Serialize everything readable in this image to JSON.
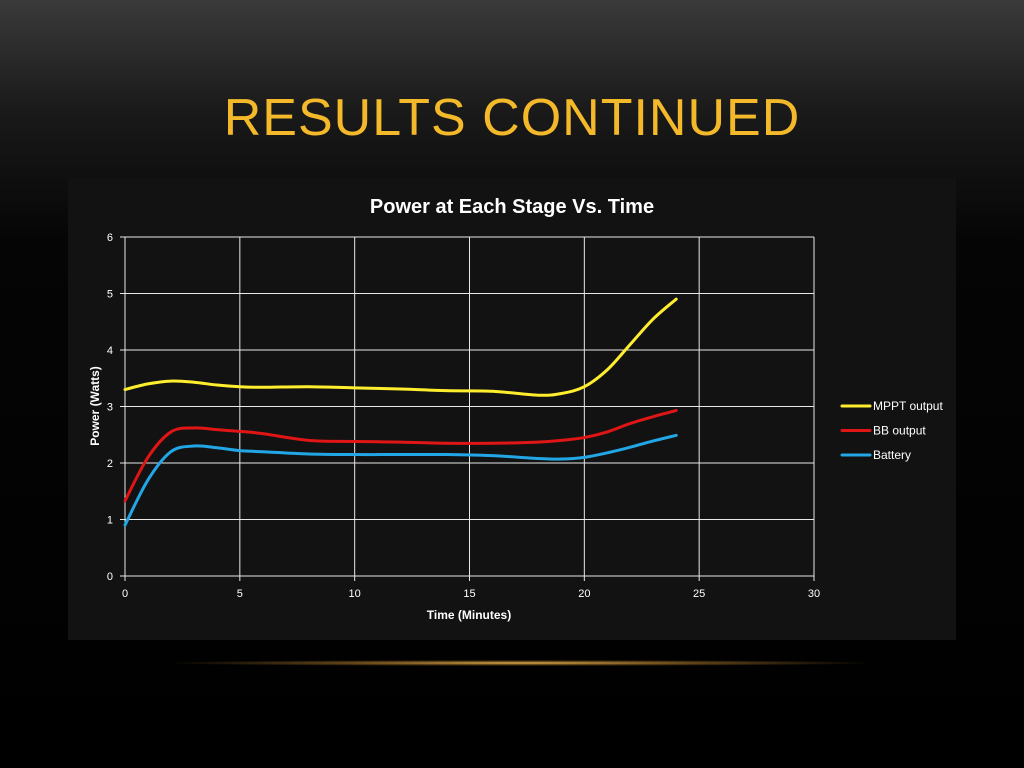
{
  "slide": {
    "title": "RESULTS CONTINUED"
  },
  "colors": {
    "title": "#F4B92A",
    "MPPT output": "#FFEE2E",
    "BB output": "#E01515",
    "Battery": "#23A6E6",
    "grid": "#E8E8E8"
  },
  "chart_data": {
    "type": "line",
    "title": "Power at Each Stage Vs. Time",
    "xlabel": "Time (Minutes)",
    "ylabel": "Power (Watts)",
    "xlim": [
      0,
      30
    ],
    "ylim": [
      0,
      6
    ],
    "xticks": [
      0,
      5,
      10,
      15,
      20,
      25,
      30
    ],
    "yticks": [
      0,
      1,
      2,
      3,
      4,
      5,
      6
    ],
    "grid": true,
    "legend_position": "right",
    "x": [
      0,
      1,
      2,
      3,
      4,
      5,
      6,
      8,
      10,
      12,
      14,
      16,
      18,
      19,
      20,
      21,
      22,
      23,
      24
    ],
    "series": [
      {
        "name": "MPPT output",
        "values": [
          3.3,
          3.4,
          3.45,
          3.43,
          3.38,
          3.35,
          3.34,
          3.35,
          3.33,
          3.31,
          3.28,
          3.27,
          3.2,
          3.23,
          3.35,
          3.65,
          4.1,
          4.55,
          4.9
        ]
      },
      {
        "name": "BB output",
        "values": [
          1.33,
          2.1,
          2.55,
          2.62,
          2.59,
          2.56,
          2.52,
          2.4,
          2.38,
          2.37,
          2.35,
          2.35,
          2.37,
          2.4,
          2.45,
          2.55,
          2.7,
          2.82,
          2.93
        ]
      },
      {
        "name": "Battery",
        "values": [
          0.9,
          1.7,
          2.2,
          2.3,
          2.27,
          2.22,
          2.2,
          2.16,
          2.15,
          2.15,
          2.15,
          2.13,
          2.08,
          2.07,
          2.1,
          2.18,
          2.28,
          2.39,
          2.49
        ]
      }
    ]
  }
}
